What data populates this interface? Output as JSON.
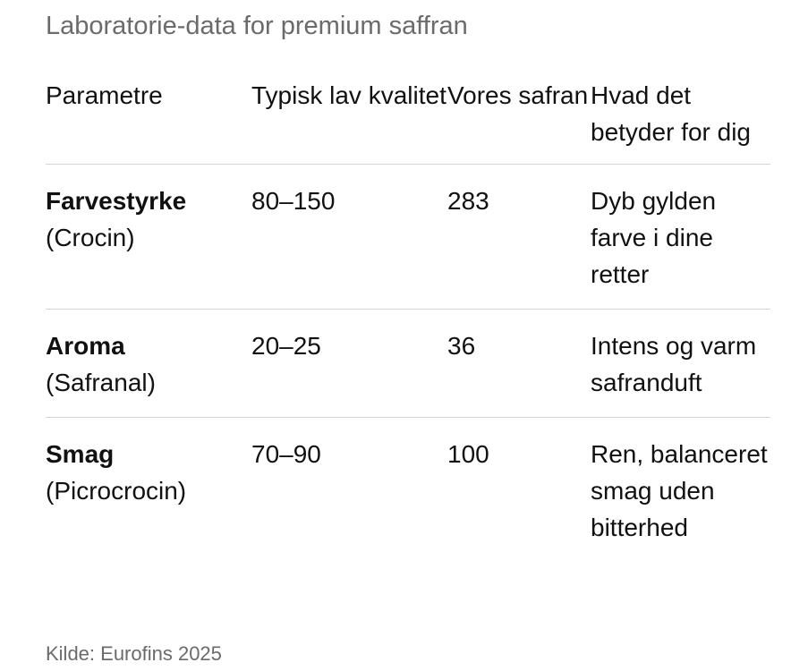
{
  "title": "Laboratorie-data for premium saffran",
  "table": {
    "headers": [
      "Parametre",
      "Typisk lav kvalitet",
      "Vores safran",
      "Hvad det betyder for dig"
    ],
    "rows": [
      {
        "parameter": "Farvestyrke",
        "compound": "(Crocin)",
        "low_quality": "80–150",
        "ours": "283",
        "meaning": "Dyb gylden farve i dine retter"
      },
      {
        "parameter": "Aroma",
        "compound": "(Safranal)",
        "low_quality": "20–25",
        "ours": "36",
        "meaning": "Intens og varm safranduft"
      },
      {
        "parameter": "Smag",
        "compound": "(Picrocrocin)",
        "low_quality": "70–90",
        "ours": "100",
        "meaning": "Ren, balanceret smag uden bitterhed"
      }
    ]
  },
  "source": "Kilde: Eurofins 2025"
}
